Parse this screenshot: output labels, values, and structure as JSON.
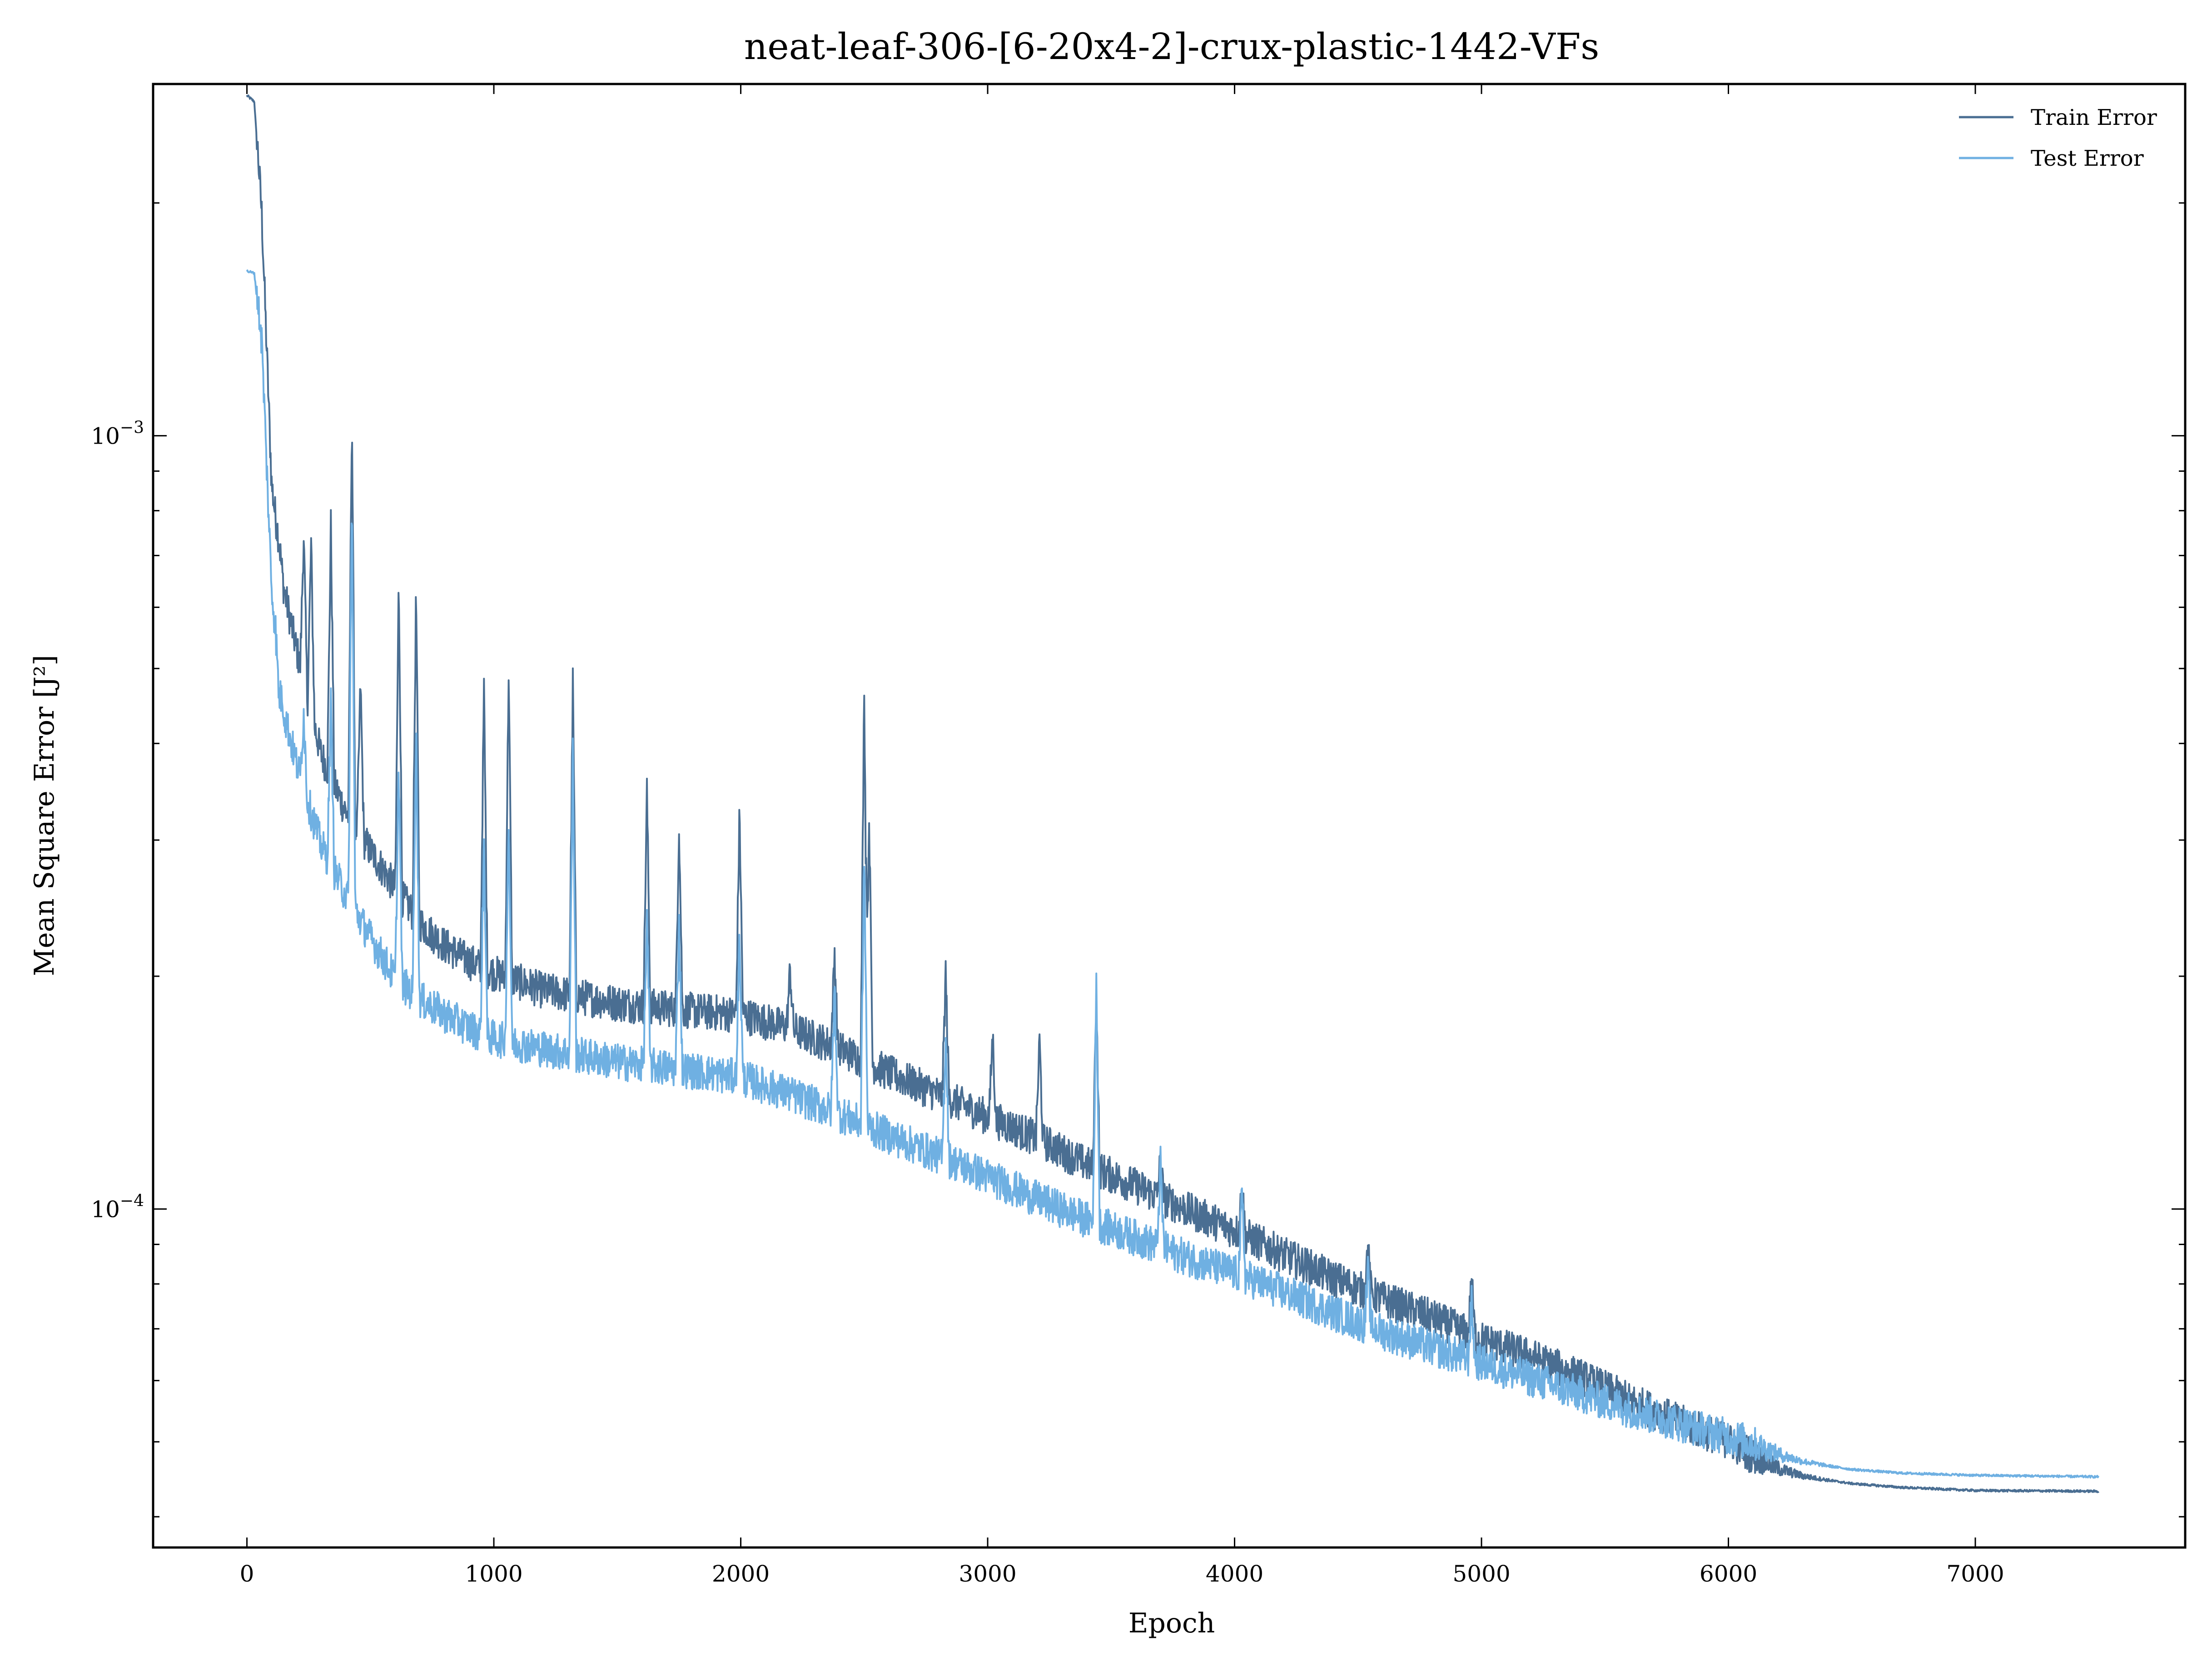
{
  "chart_data": {
    "type": "line",
    "title": "neat-leaf-306-[6-20x4-2]-crux-plastic-1442-VFs",
    "xlabel": "Epoch",
    "ylabel": "Mean Square Error [J²]",
    "xlim": [
      -380,
      7850
    ],
    "ylim": [
      3.65e-05,
      0.00285
    ],
    "yscale": "log",
    "grid": false,
    "legend_position": "top-right",
    "x_ticks": [
      0,
      1000,
      2000,
      3000,
      4000,
      5000,
      6000,
      7000
    ],
    "x_tick_labels": [
      "0",
      "1000",
      "2000",
      "3000",
      "4000",
      "5000",
      "6000",
      "7000"
    ],
    "y_major_ticks": [
      {
        "value": 0.001,
        "base": "10",
        "exponent": "−3"
      },
      {
        "value": 0.0001,
        "base": "10",
        "exponent": "−4"
      }
    ],
    "y_minor_ticks": [
      4e-05,
      5e-05,
      6e-05,
      7e-05,
      8e-05,
      9e-05,
      0.0002,
      0.0003,
      0.0004,
      0.0005,
      0.0006,
      0.0007,
      0.0008,
      0.0009,
      0.002
    ],
    "series": [
      {
        "name": "Train Error",
        "color": "#4a6e92",
        "x": [
          0,
          30,
          60,
          100,
          150,
          200,
          300,
          400,
          500,
          600,
          700,
          800,
          900,
          1000,
          1200,
          1500,
          1800,
          2000,
          2200,
          2400,
          2600,
          2800,
          3000,
          3200,
          3400,
          3600,
          3800,
          4000,
          4200,
          4400,
          4600,
          4800,
          5000,
          5200,
          5400,
          5600,
          5800,
          6000,
          6100,
          6200,
          6300,
          6500,
          6700,
          7000,
          7500
        ],
        "y": [
          0.00275,
          0.0027,
          0.0019,
          0.00085,
          0.00062,
          0.00052,
          0.00038,
          0.00032,
          0.000285,
          0.000255,
          0.00023,
          0.000215,
          0.000205,
          0.000198,
          0.000188,
          0.000181,
          0.000177,
          0.000175,
          0.000168,
          0.000158,
          0.000147,
          0.000138,
          0.000129,
          0.000121,
          0.000112,
          0.000105,
          9.8e-05,
          9.2e-05,
          8.55e-05,
          7.98e-05,
          7.5e-05,
          7.1e-05,
          6.65e-05,
          6.32e-05,
          5.95e-05,
          5.55e-05,
          5.2e-05,
          4.92e-05,
          4.7e-05,
          4.58e-05,
          4.5e-05,
          4.41e-05,
          4.36e-05,
          4.32e-05,
          4.31e-05
        ],
        "spikes": [
          {
            "x": 130,
            "y": 0.00072
          },
          {
            "x": 230,
            "y": 0.00073
          },
          {
            "x": 260,
            "y": 0.00071
          },
          {
            "x": 340,
            "y": 0.00075
          },
          {
            "x": 425,
            "y": 0.00106
          },
          {
            "x": 460,
            "y": 0.00047
          },
          {
            "x": 615,
            "y": 0.00064
          },
          {
            "x": 685,
            "y": 0.00062
          },
          {
            "x": 960,
            "y": 0.00046
          },
          {
            "x": 1060,
            "y": 0.00049
          },
          {
            "x": 1320,
            "y": 0.00047
          },
          {
            "x": 1620,
            "y": 0.00034
          },
          {
            "x": 1750,
            "y": 0.00031
          },
          {
            "x": 1995,
            "y": 0.00032
          },
          {
            "x": 2200,
            "y": 0.0002
          },
          {
            "x": 2380,
            "y": 0.00021
          },
          {
            "x": 2500,
            "y": 0.00047
          },
          {
            "x": 2520,
            "y": 0.00032
          },
          {
            "x": 2830,
            "y": 0.000198
          },
          {
            "x": 3020,
            "y": 0.000165
          },
          {
            "x": 3210,
            "y": 0.000162
          },
          {
            "x": 3440,
            "y": 0.000185
          },
          {
            "x": 3700,
            "y": 0.000113
          },
          {
            "x": 4030,
            "y": 0.000105
          },
          {
            "x": 4540,
            "y": 8.7e-05
          },
          {
            "x": 4960,
            "y": 7.9e-05
          }
        ]
      },
      {
        "name": "Test Error",
        "color": "#6fb0e2",
        "x": [
          0,
          30,
          60,
          100,
          150,
          200,
          300,
          400,
          500,
          600,
          700,
          800,
          900,
          1000,
          1200,
          1500,
          1800,
          2000,
          2200,
          2400,
          2600,
          2800,
          3000,
          3200,
          3400,
          3600,
          3800,
          4000,
          4200,
          4400,
          4600,
          4800,
          5000,
          5200,
          5400,
          5600,
          5800,
          6000,
          6100,
          6200,
          6300,
          6500,
          6700,
          7000,
          7500
        ],
        "y": [
          0.00163,
          0.00162,
          0.0013,
          0.00062,
          0.00043,
          0.00037,
          0.00029,
          0.00025,
          0.00022,
          0.000195,
          0.000183,
          0.000175,
          0.000168,
          0.000163,
          0.000158,
          0.000152,
          0.000148,
          0.000145,
          0.000138,
          0.00013,
          0.000122,
          0.000115,
          0.000108,
          0.000101,
          9.5e-05,
          9e-05,
          8.5e-05,
          8.1e-05,
          7.65e-05,
          7.2e-05,
          6.8e-05,
          6.48e-05,
          6.2e-05,
          5.92e-05,
          5.65e-05,
          5.4e-05,
          5.18e-05,
          4.98e-05,
          4.88e-05,
          4.78e-05,
          4.7e-05,
          4.6e-05,
          4.55e-05,
          4.52e-05,
          4.5e-05
        ],
        "spikes": [
          {
            "x": 130,
            "y": 0.00045
          },
          {
            "x": 230,
            "y": 0.00043
          },
          {
            "x": 340,
            "y": 0.00044
          },
          {
            "x": 425,
            "y": 0.00081
          },
          {
            "x": 615,
            "y": 0.00037
          },
          {
            "x": 685,
            "y": 0.00041
          },
          {
            "x": 960,
            "y": 0.00029
          },
          {
            "x": 1060,
            "y": 0.00031
          },
          {
            "x": 1320,
            "y": 0.00038
          },
          {
            "x": 1620,
            "y": 0.00023
          },
          {
            "x": 1750,
            "y": 0.00023
          },
          {
            "x": 1995,
            "y": 0.00022
          },
          {
            "x": 2380,
            "y": 0.00019
          },
          {
            "x": 2500,
            "y": 0.00028
          },
          {
            "x": 2830,
            "y": 0.000165
          },
          {
            "x": 3440,
            "y": 0.00019
          },
          {
            "x": 3700,
            "y": 0.000112
          },
          {
            "x": 4030,
            "y": 0.000102
          },
          {
            "x": 4540,
            "y": 8.1e-05
          },
          {
            "x": 4960,
            "y": 7.4e-05
          }
        ]
      }
    ]
  }
}
